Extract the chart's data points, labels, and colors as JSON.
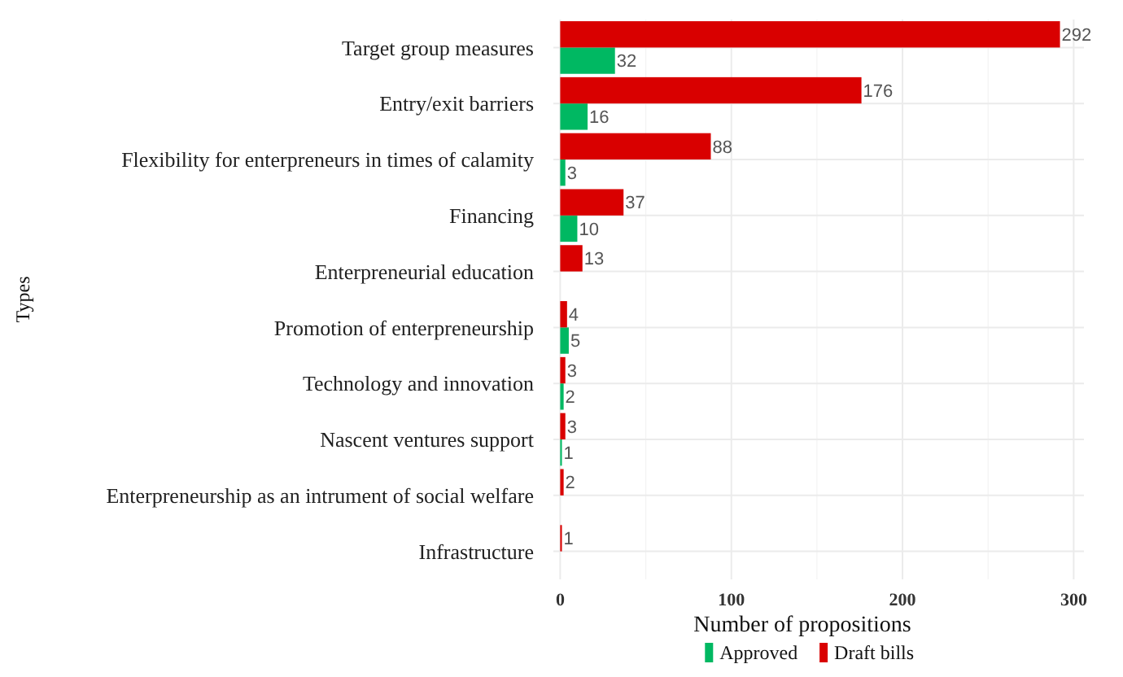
{
  "chart_data": {
    "type": "bar",
    "orientation": "horizontal",
    "xlabel": "Number of propositions",
    "ylabel": "Types",
    "categories": [
      "Target group measures",
      "Entry/exit barriers",
      "Flexibility for enterpreneurs in times of calamity",
      "Financing",
      "Enterpreneurial education",
      "Promotion of enterpreneurship",
      "Technology and innovation",
      "Nascent ventures support",
      "Enterpreneurship as an intrument of social welfare",
      "Infrastructure"
    ],
    "series": [
      {
        "name": "Approved",
        "color": "#00b862",
        "values": [
          32,
          16,
          3,
          10,
          null,
          5,
          2,
          1,
          null,
          null
        ]
      },
      {
        "name": "Draft bills",
        "color": "#d90000",
        "values": [
          292,
          176,
          88,
          37,
          13,
          4,
          3,
          3,
          2,
          1
        ]
      }
    ],
    "xlim": [
      -4,
      306
    ],
    "xticks": [
      0,
      {
        "value": 50,
        "label": null
      },
      100,
      {
        "value": 150,
        "label": null
      },
      200,
      {
        "value": 250,
        "label": null
      },
      300
    ],
    "grid": true,
    "legend": "bottom",
    "data_labels": true
  }
}
